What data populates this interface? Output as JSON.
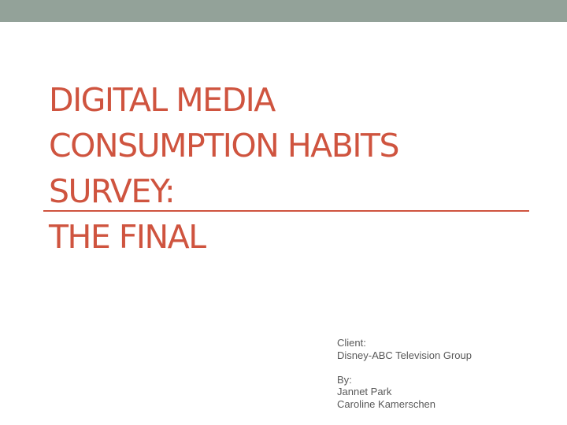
{
  "slide": {
    "title_lines": [
      "DIGITAL MEDIA",
      "CONSUMPTION HABITS",
      "SURVEY:",
      "THE FINAL"
    ],
    "client_label": "Client:",
    "client_name": "Disney-ABC Television Group",
    "by_label": "By:",
    "authors": [
      "Jannet Park",
      "Caroline Kamerschen"
    ]
  },
  "colors": {
    "top_bar": "#93a299",
    "accent": "#cf543f",
    "body_text": "#595959"
  }
}
